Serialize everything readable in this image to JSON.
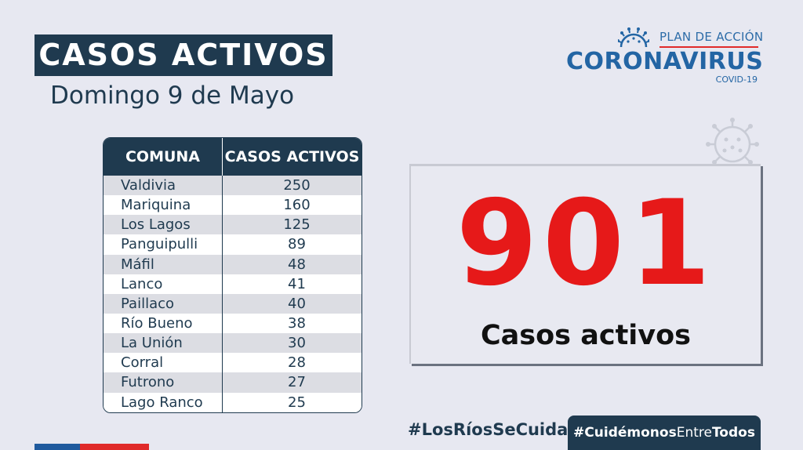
{
  "header": {
    "title": "CASOS ACTIVOS",
    "date": "Domingo 9 de Mayo"
  },
  "logo": {
    "plan": "PLAN DE ACCIÓN",
    "main": "CORONAVIRUS",
    "sub": "COVID-19"
  },
  "table": {
    "headers": [
      "COMUNA",
      "CASOS ACTIVOS"
    ],
    "rows": [
      {
        "comuna": "Valdivia",
        "casos": "250"
      },
      {
        "comuna": "Mariquina",
        "casos": "160"
      },
      {
        "comuna": "Los Lagos",
        "casos": "125"
      },
      {
        "comuna": "Panguipulli",
        "casos": "89"
      },
      {
        "comuna": "Máfil",
        "casos": "48"
      },
      {
        "comuna": "Lanco",
        "casos": "41"
      },
      {
        "comuna": "Paillaco",
        "casos": "40"
      },
      {
        "comuna": "Río Bueno",
        "casos": "38"
      },
      {
        "comuna": "La Unión",
        "casos": "30"
      },
      {
        "comuna": "Corral",
        "casos": "28"
      },
      {
        "comuna": "Futrono",
        "casos": "27"
      },
      {
        "comuna": "Lago Ranco",
        "casos": "25"
      }
    ]
  },
  "total": {
    "number": "901",
    "label": "Casos activos"
  },
  "footer": {
    "hashtag1": "#LosRíosSeCuida",
    "hashtag2_a": "#Cuidémonos",
    "hashtag2_b": "Entre",
    "hashtag2_c": "Todos"
  },
  "colors": {
    "navy": "#1f3a4f",
    "red": "#e61919",
    "background": "#e7e8f1",
    "logo_blue": "#2365a4"
  },
  "icons": [
    "virus-logo-icon",
    "virus-decoration-icon"
  ]
}
